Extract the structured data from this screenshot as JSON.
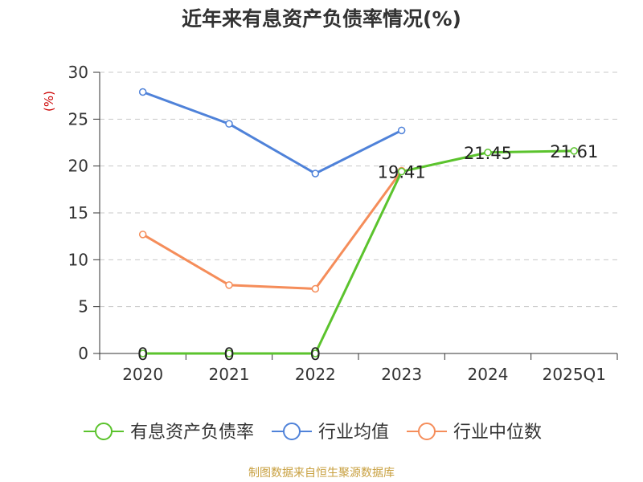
{
  "chart_data": {
    "type": "line",
    "title": "近年来有息资产负债率情况(%)",
    "ylabel": "(%)",
    "xlabel": "",
    "ylim": [
      0,
      30
    ],
    "yticks": [
      0,
      5,
      10,
      15,
      20,
      25,
      30
    ],
    "categories": [
      "2020",
      "2021",
      "2022",
      "2023",
      "2024",
      "2025Q1"
    ],
    "grid": true,
    "legend_position": "bottom",
    "series": [
      {
        "name": "有息资产负债率",
        "color": "#5bc32d",
        "values": [
          0,
          0,
          0,
          19.41,
          21.45,
          21.61
        ],
        "labels": [
          "0",
          "0",
          "0",
          "19.41",
          "21.45",
          "21.61"
        ]
      },
      {
        "name": "行业均值",
        "color": "#4f82d9",
        "values": [
          27.9,
          24.5,
          19.2,
          23.8,
          null,
          null
        ]
      },
      {
        "name": "行业中位数",
        "color": "#f58d5a",
        "values": [
          12.7,
          7.3,
          6.9,
          19.5,
          null,
          null
        ]
      }
    ]
  },
  "footer": {
    "source": "制图数据来自恒生聚源数据库"
  }
}
